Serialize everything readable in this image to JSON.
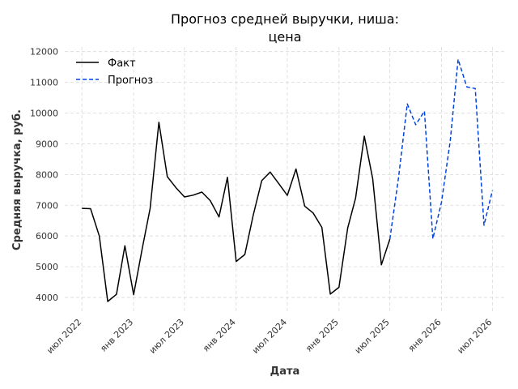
{
  "chart_data": {
    "type": "line",
    "title_lines": [
      "Прогноз средней выручки, ниша:",
      "цена"
    ],
    "xlabel": "Дата",
    "ylabel": "Средняя выручка, руб.",
    "ylim": [
      3500,
      12150
    ],
    "yticks": [
      4000,
      5000,
      6000,
      7000,
      8000,
      9000,
      10000,
      11000,
      12000
    ],
    "xlim": [
      "2022-05-01",
      "2026-08-15"
    ],
    "xticks": [
      {
        "date": "2022-07-01",
        "label": "июл 2022"
      },
      {
        "date": "2023-01-01",
        "label": "янв 2023"
      },
      {
        "date": "2023-07-01",
        "label": "июл 2023"
      },
      {
        "date": "2024-01-01",
        "label": "янв 2024"
      },
      {
        "date": "2024-07-01",
        "label": "июл 2024"
      },
      {
        "date": "2025-01-01",
        "label": "янв 2025"
      },
      {
        "date": "2025-07-01",
        "label": "июл 2025"
      },
      {
        "date": "2026-01-01",
        "label": "янв 2026"
      },
      {
        "date": "2026-07-01",
        "label": "июл 2026"
      }
    ],
    "grid": true,
    "legend_position": "top-left",
    "series": [
      {
        "name": "Факт",
        "color": "#000000",
        "style": "solid",
        "points": [
          [
            "2022-07-01",
            6900
          ],
          [
            "2022-08-01",
            6890
          ],
          [
            "2022-09-01",
            6000
          ],
          [
            "2022-10-01",
            3870
          ],
          [
            "2022-11-01",
            4100
          ],
          [
            "2022-12-01",
            5680
          ],
          [
            "2023-01-01",
            4090
          ],
          [
            "2023-02-01",
            5600
          ],
          [
            "2023-03-01",
            6900
          ],
          [
            "2023-04-01",
            9700
          ],
          [
            "2023-05-01",
            7930
          ],
          [
            "2023-06-01",
            7570
          ],
          [
            "2023-07-01",
            7270
          ],
          [
            "2023-08-01",
            7330
          ],
          [
            "2023-09-01",
            7430
          ],
          [
            "2023-10-01",
            7150
          ],
          [
            "2023-11-01",
            6620
          ],
          [
            "2023-12-01",
            7910
          ],
          [
            "2024-01-01",
            5170
          ],
          [
            "2024-02-01",
            5400
          ],
          [
            "2024-03-01",
            6650
          ],
          [
            "2024-04-01",
            7800
          ],
          [
            "2024-05-01",
            8080
          ],
          [
            "2024-06-01",
            7700
          ],
          [
            "2024-07-01",
            7320
          ],
          [
            "2024-08-01",
            8180
          ],
          [
            "2024-09-01",
            6970
          ],
          [
            "2024-10-01",
            6750
          ],
          [
            "2024-11-01",
            6280
          ],
          [
            "2024-12-01",
            4110
          ],
          [
            "2025-01-01",
            4330
          ],
          [
            "2025-02-01",
            6260
          ],
          [
            "2025-03-01",
            7230
          ],
          [
            "2025-04-01",
            9250
          ],
          [
            "2025-05-01",
            7860
          ],
          [
            "2025-06-01",
            5060
          ],
          [
            "2025-07-01",
            5900
          ]
        ]
      },
      {
        "name": "Прогноз",
        "color": "#0044dd",
        "style": "dashed",
        "points": [
          [
            "2025-07-01",
            5900
          ],
          [
            "2025-08-01",
            7900
          ],
          [
            "2025-09-01",
            10300
          ],
          [
            "2025-10-01",
            9620
          ],
          [
            "2025-11-01",
            10060
          ],
          [
            "2025-12-01",
            5910
          ],
          [
            "2026-01-01",
            7100
          ],
          [
            "2026-02-01",
            9100
          ],
          [
            "2026-03-01",
            11750
          ],
          [
            "2026-04-01",
            10850
          ],
          [
            "2026-05-01",
            10800
          ],
          [
            "2026-06-01",
            6350
          ],
          [
            "2026-07-01",
            7480
          ]
        ]
      }
    ]
  }
}
